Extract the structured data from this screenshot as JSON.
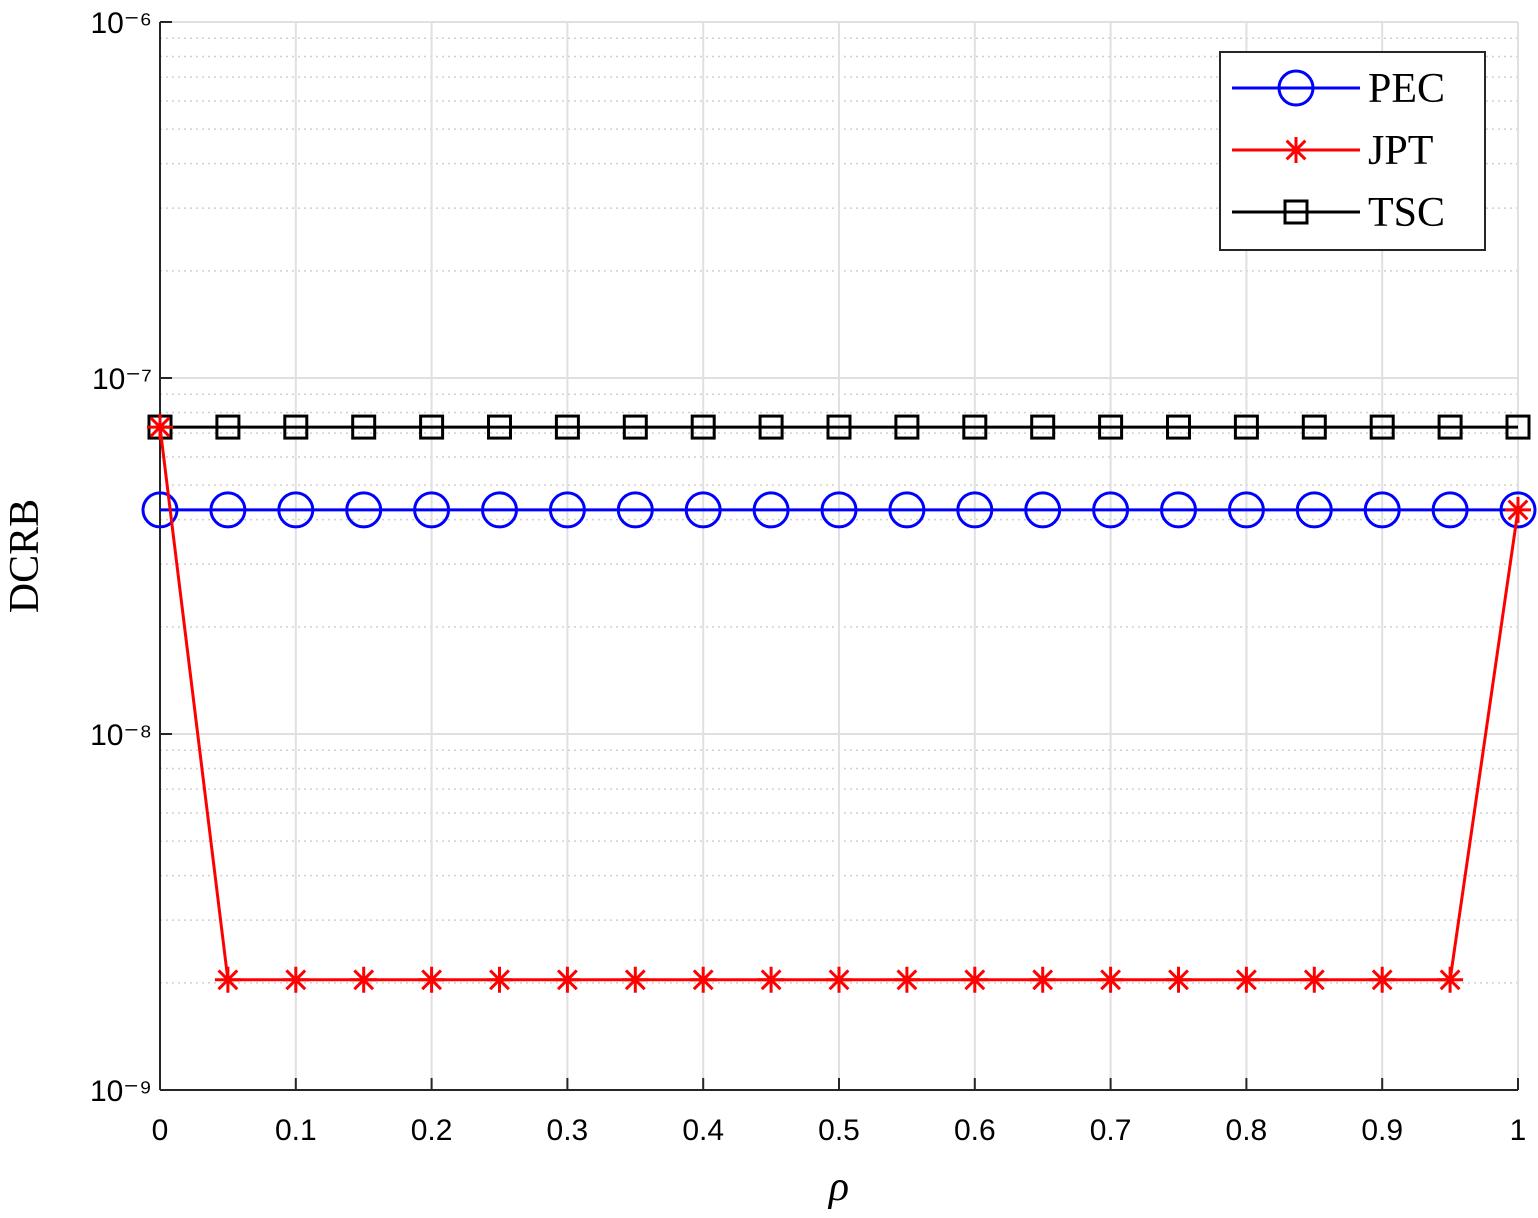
{
  "chart_data": {
    "type": "line",
    "x_label": "ρ",
    "y_label": "DCRB",
    "x": [
      0,
      0.05,
      0.1,
      0.15,
      0.2,
      0.25,
      0.3,
      0.35,
      0.4,
      0.45,
      0.5,
      0.55,
      0.6,
      0.65,
      0.7,
      0.75,
      0.8,
      0.85,
      0.9,
      0.95,
      1
    ],
    "series": [
      {
        "name": "PEC",
        "color": "#0000ff",
        "marker": "circle",
        "values": [
          4.26e-08,
          4.26e-08,
          4.26e-08,
          4.26e-08,
          4.26e-08,
          4.26e-08,
          4.26e-08,
          4.26e-08,
          4.26e-08,
          4.26e-08,
          4.26e-08,
          4.26e-08,
          4.26e-08,
          4.26e-08,
          4.26e-08,
          4.26e-08,
          4.26e-08,
          4.26e-08,
          4.26e-08,
          4.26e-08,
          4.26e-08
        ]
      },
      {
        "name": "JPT",
        "color": "#ff0000",
        "marker": "asterisk",
        "values": [
          7.28e-08,
          2.04e-09,
          2.04e-09,
          2.04e-09,
          2.04e-09,
          2.04e-09,
          2.04e-09,
          2.04e-09,
          2.04e-09,
          2.04e-09,
          2.04e-09,
          2.04e-09,
          2.04e-09,
          2.04e-09,
          2.04e-09,
          2.04e-09,
          2.04e-09,
          2.04e-09,
          2.04e-09,
          2.04e-09,
          4.26e-08
        ]
      },
      {
        "name": "TSC",
        "color": "#000000",
        "marker": "square",
        "values": [
          7.28e-08,
          7.28e-08,
          7.28e-08,
          7.28e-08,
          7.28e-08,
          7.28e-08,
          7.28e-08,
          7.28e-08,
          7.28e-08,
          7.28e-08,
          7.28e-08,
          7.28e-08,
          7.28e-08,
          7.28e-08,
          7.28e-08,
          7.28e-08,
          7.28e-08,
          7.28e-08,
          7.28e-08,
          7.28e-08,
          7.28e-08
        ]
      }
    ],
    "xlim": [
      0,
      1
    ],
    "xticks": [
      0,
      0.1,
      0.2,
      0.3,
      0.4,
      0.5,
      0.6,
      0.7,
      0.8,
      0.9,
      1
    ],
    "ylim": [
      1e-09,
      1e-06
    ],
    "y_scale": "log",
    "yticks": [
      {
        "value": 1e-09,
        "label": "10⁻⁹"
      },
      {
        "value": 1e-08,
        "label": "10⁻⁸"
      },
      {
        "value": 1e-07,
        "label": "10⁻⁷"
      },
      {
        "value": 1e-06,
        "label": "10⁻⁶"
      }
    ],
    "yminorticks": [
      2e-09,
      3e-09,
      4e-09,
      5e-09,
      6e-09,
      7e-09,
      8e-09,
      9e-09,
      2e-08,
      3e-08,
      4e-08,
      5e-08,
      6e-08,
      7e-08,
      8e-08,
      9e-08,
      2e-07,
      3e-07,
      4e-07,
      5e-07,
      6e-07,
      7e-07,
      8e-07,
      9e-07
    ],
    "grid": true,
    "legend_position": "northeast"
  }
}
